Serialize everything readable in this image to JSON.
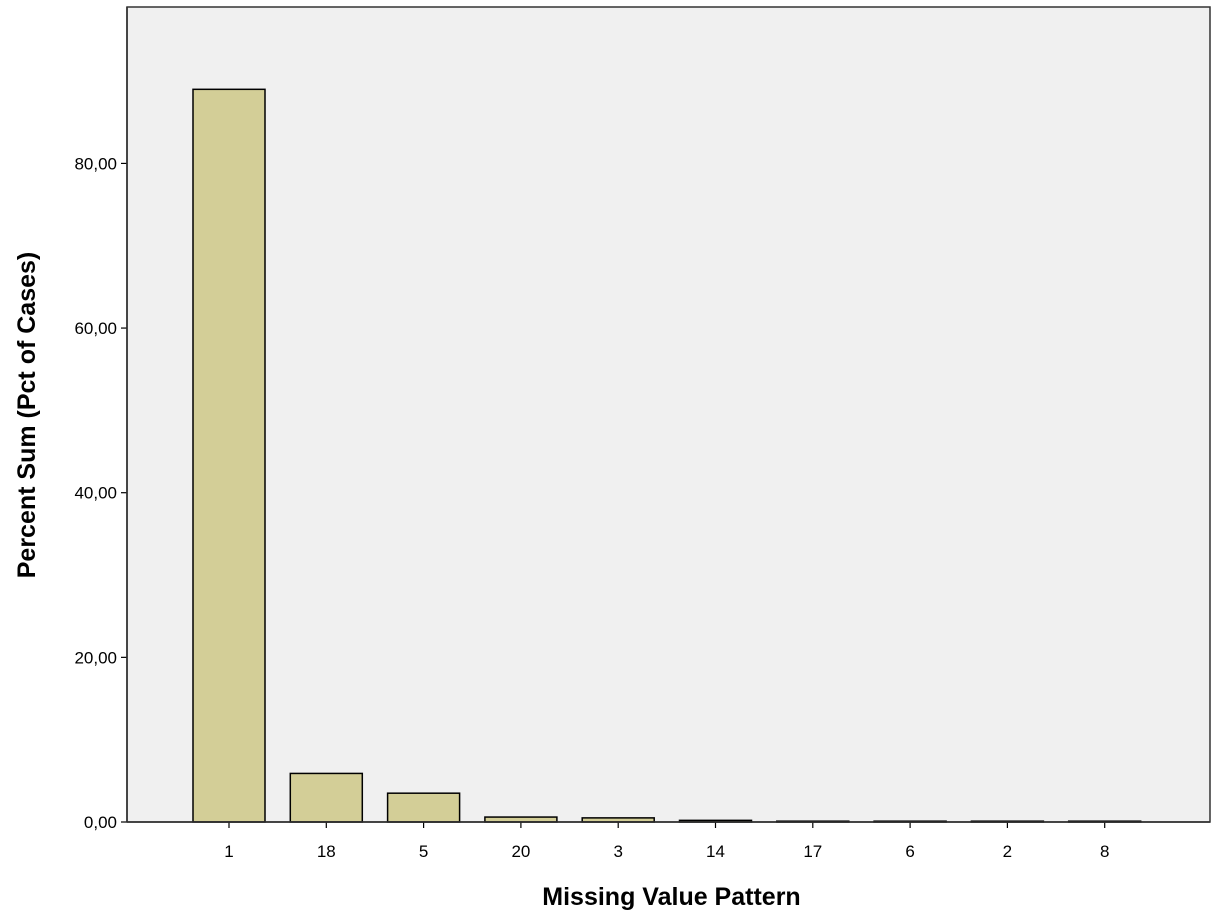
{
  "chart_data": {
    "type": "bar",
    "title": "",
    "xlabel": "Missing Value Pattern",
    "ylabel": "Percent Sum (Pct of Cases)",
    "categories": [
      "1",
      "18",
      "5",
      "20",
      "3",
      "14",
      "17",
      "6",
      "2",
      "8"
    ],
    "values": [
      89.0,
      5.9,
      3.5,
      0.6,
      0.5,
      0.2,
      0.1,
      0.1,
      0.1,
      0.1
    ],
    "ylim": [
      0,
      99
    ],
    "yticks": [
      0,
      20,
      40,
      60,
      80
    ],
    "ytick_labels": [
      "0,00",
      "20,00",
      "40,00",
      "60,00",
      "80,00"
    ],
    "grid": false,
    "legend": "none",
    "colors": {
      "plot_background": "#f0f0f0",
      "bar_fill": "#d3ce97",
      "bar_stroke": "#000000",
      "frame": "#333333"
    }
  }
}
